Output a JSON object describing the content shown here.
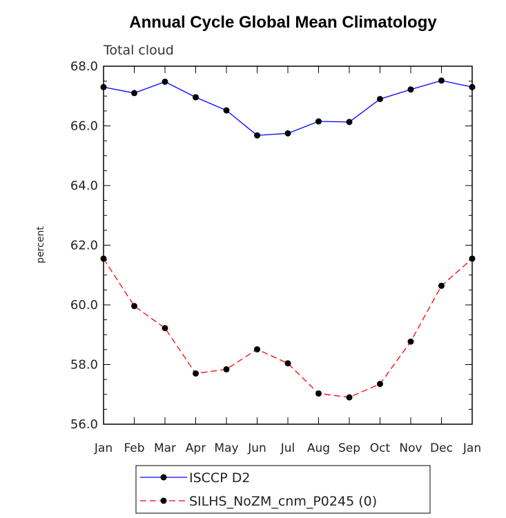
{
  "chart_data": {
    "type": "line",
    "title": "Annual Cycle Global Mean Climatology",
    "subtitle": "Total cloud",
    "ylabel": "percent",
    "xlabel": "",
    "categories": [
      "Jan",
      "Feb",
      "Mar",
      "Apr",
      "May",
      "Jun",
      "Jul",
      "Aug",
      "Sep",
      "Oct",
      "Nov",
      "Dec",
      "Jan"
    ],
    "ylim": [
      56.0,
      68.0
    ],
    "yticks": [
      "56.0",
      "58.0",
      "60.0",
      "62.0",
      "64.0",
      "66.0",
      "68.0"
    ],
    "grid": false,
    "legend_position": "bottom",
    "series": [
      {
        "name": "ISCCP D2",
        "color": "#0000ff",
        "line_style": "solid",
        "values": [
          67.3,
          67.1,
          67.48,
          66.96,
          66.52,
          65.68,
          65.75,
          66.15,
          66.13,
          66.9,
          67.22,
          67.52,
          67.3
        ]
      },
      {
        "name": "SILHS_NoZM_cnm_P0245 (0)",
        "color": "#ff0000",
        "line_style": "dashed",
        "values": [
          61.55,
          59.96,
          59.22,
          57.7,
          57.84,
          58.51,
          58.04,
          57.03,
          56.9,
          57.35,
          58.77,
          60.64,
          61.55
        ]
      }
    ]
  }
}
